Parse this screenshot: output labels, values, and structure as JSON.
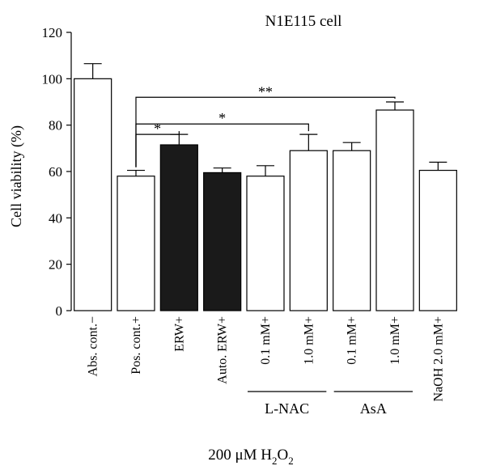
{
  "chart_data": {
    "type": "bar",
    "title": "N1E115 cell",
    "ylabel": "Cell viability (%)",
    "xlabel_main": "200 μM H",
    "xlabel_sub1": "2",
    "xlabel_mid": "O",
    "xlabel_sub2": "2",
    "ylim": [
      0,
      120
    ],
    "yticks": [
      0,
      20,
      40,
      60,
      80,
      100,
      120
    ],
    "categories": [
      "Abs. cont.",
      "Pos. cont.",
      "ERW",
      "Auto. ERW",
      "0.1 mM",
      "1.0 mM",
      "0.1 mM",
      "1.0 mM",
      "NaOH 2.0 mM"
    ],
    "h2o2_signs": [
      "−",
      "+",
      "+",
      "+",
      "+",
      "+",
      "+",
      "+",
      "+"
    ],
    "values": [
      100,
      58,
      71.5,
      59.5,
      58,
      69,
      69,
      86.5,
      60.5
    ],
    "errors": [
      6.5,
      2.5,
      4.5,
      2,
      4.5,
      7,
      3.5,
      3.5,
      3.5
    ],
    "colors": [
      "#ffffff",
      "#ffffff",
      "#1a1a1a",
      "#1a1a1a",
      "#ffffff",
      "#ffffff",
      "#ffffff",
      "#ffffff",
      "#ffffff"
    ],
    "groups": [
      {
        "label": "L-NAC",
        "from": 4,
        "to": 5
      },
      {
        "label": "AsA",
        "from": 6,
        "to": 7
      }
    ],
    "significance": [
      {
        "from": 1,
        "to": 2,
        "label": "*",
        "y": 76
      },
      {
        "from": 1,
        "to": 5,
        "label": "*",
        "y": 80.5
      },
      {
        "from": 1,
        "to": 7,
        "label": "**",
        "y": 92
      }
    ]
  }
}
